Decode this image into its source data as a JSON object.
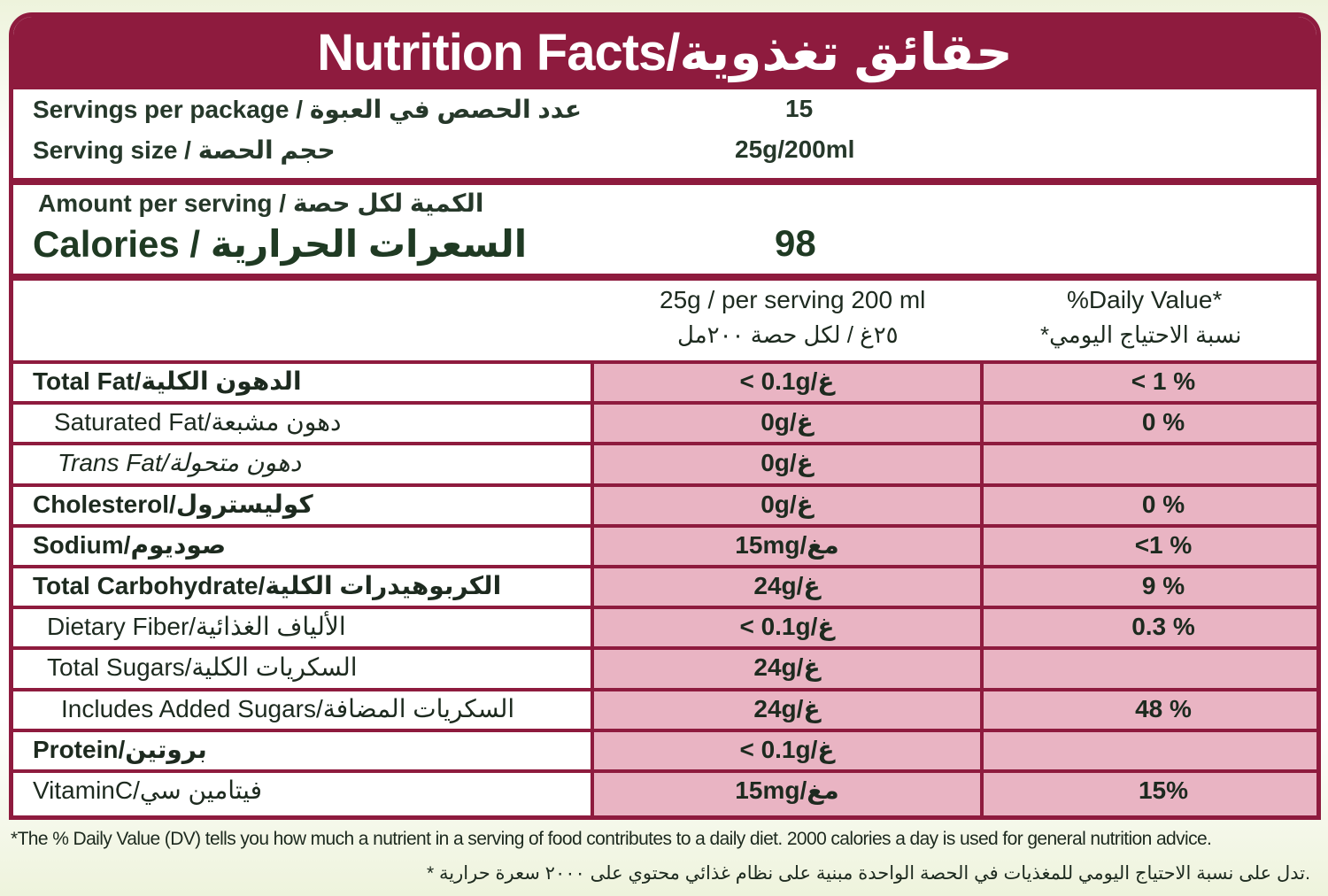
{
  "title": "Nutrition Facts/حقائق تغذوية",
  "servings": [
    {
      "label": "Servings per package / عدد الحصص في العبوة",
      "value": "15"
    },
    {
      "label": "Serving size / حجم الحصة",
      "value": "25g/200ml"
    }
  ],
  "amount_label": "Amount per serving / الكمية لكل حصة",
  "calories": {
    "label": "Calories / السعرات الحرارية",
    "value": "98"
  },
  "table": {
    "header": {
      "amount": [
        "25g / per serving 200 ml",
        "٢٥غ / لكل حصة ٢٠٠مل"
      ],
      "daily_value": [
        "%Daily Value*",
        "*نسبة الاحتياج اليومي"
      ]
    },
    "rows": [
      [
        "Total Fat/الدهون الكلية",
        "< 0.1g/غ",
        "< 1 %"
      ],
      [
        "Saturated Fat/دهون مشبعة",
        "0g/غ",
        "0 %"
      ],
      [
        "Trans Fat/دهون متحولة",
        "0g/غ",
        null
      ],
      [
        "Cholesterol/كوليسترول",
        "0g/غ",
        "0 %"
      ],
      [
        "Sodium/صوديوم",
        "15mg/مغ",
        "<1 %"
      ],
      [
        "Total Carbohydrate/الكربوهيدرات الكلية",
        "24g/غ",
        "9 %"
      ],
      [
        "Dietary Fiber/الألياف الغذائية",
        "< 0.1g/غ",
        "0.3 %"
      ],
      [
        "Total Sugars/السكريات الكلية",
        "24g/غ",
        null
      ],
      [
        "Includes Added Sugars/السكريات المضافة",
        "24g/غ",
        "48 %"
      ],
      [
        "Protein/بروتين",
        "< 0.1g/غ",
        null
      ],
      [
        "VitaminC/فيتامين سي",
        "15mg/مغ",
        "15%"
      ]
    ]
  },
  "footnote": [
    "*The % Daily Value (DV) tells you how much a nutrient in a serving of food contributes to a daily diet. 2000 calories a day is used for general nutrition advice.",
    "* تدل على نسبة الاحتياج اليومي للمغذيات في الحصة الواحدة مبنية على نظام غذائي محتوي على ٢٠٠٠ سعرة حرارية."
  ]
}
